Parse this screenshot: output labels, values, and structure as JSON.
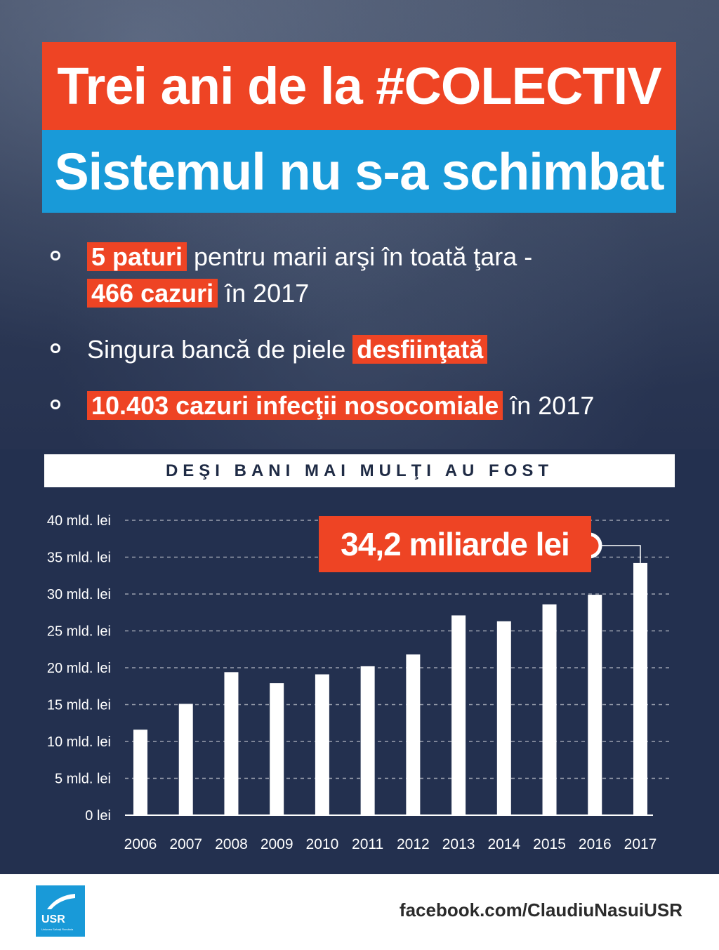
{
  "header": {
    "title_line1": "Trei ani de la #COLECTIV",
    "title_line2": "Sistemul nu s-a schimbat"
  },
  "bullets": [
    {
      "hl": "5 paturi",
      "rest": " pentru marii arşi în toată ţara -",
      "hl2": "466 cazuri",
      "rest2": " în 2017"
    },
    {
      "pre": "Singura bancă de piele ",
      "hl": "desfiinţată"
    },
    {
      "hl": "10.403 cazuri infecţii nosocomiale",
      "rest": " în 2017"
    }
  ],
  "subhead": "DEŞI BANI MAI MULŢI AU FOST",
  "chart_data": {
    "type": "bar",
    "categories": [
      "2006",
      "2007",
      "2008",
      "2009",
      "2010",
      "2011",
      "2012",
      "2013",
      "2014",
      "2015",
      "2016",
      "2017"
    ],
    "values": [
      11.6,
      15.1,
      19.4,
      17.9,
      19.1,
      20.2,
      21.8,
      27.1,
      26.3,
      28.6,
      29.9,
      34.2
    ],
    "y_tick_labels": [
      "0 lei",
      "5 mld. lei",
      "10 mld. lei",
      "15 mld. lei",
      "20 mld. lei",
      "25 mld. lei",
      "30 mld. lei",
      "35 mld. lei",
      "40 mld. lei"
    ],
    "ylim": [
      0,
      40
    ],
    "grid": true,
    "annotation": "34,2 miliarde lei",
    "bar_color": "#ffffff",
    "accent_color": "#ee4424"
  },
  "footer": {
    "logo_text": "USR",
    "logo_subtext": "Uniunea Salvaţi România",
    "link": "facebook.com/ClaudiuNasuiUSR"
  },
  "colors": {
    "orange": "#ee4424",
    "blue": "#199ad8",
    "navy": "#23304f"
  }
}
